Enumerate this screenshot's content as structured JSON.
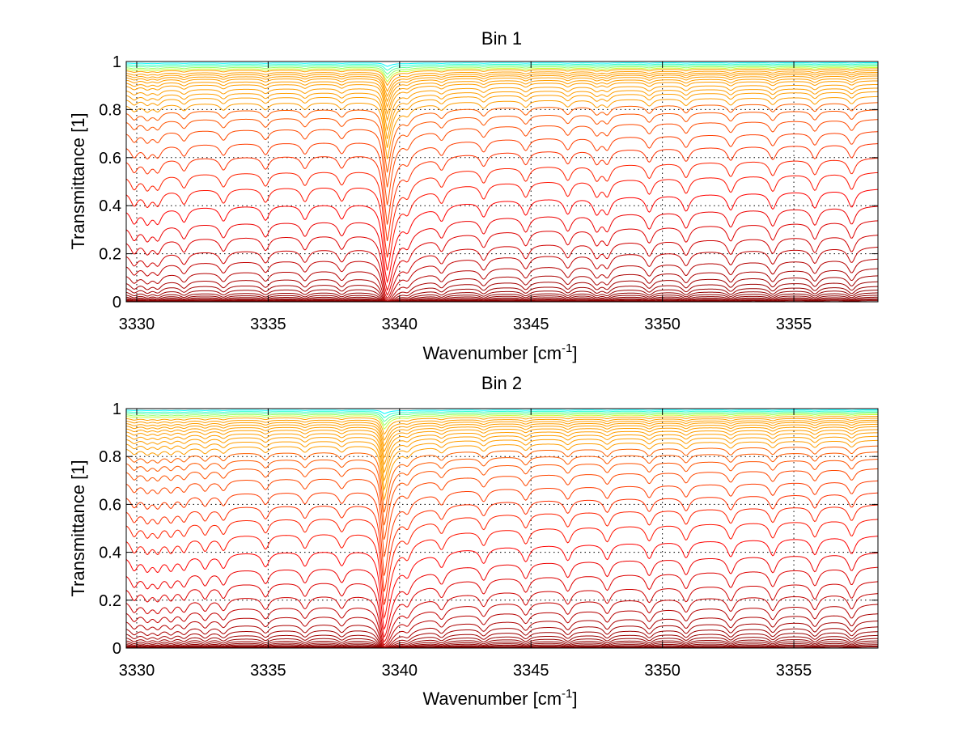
{
  "chart_data": [
    {
      "type": "line",
      "title": "Bin 1",
      "xlabel": "Wavenumber [cm",
      "xlabel_sup": "-1",
      "xlabel_end": "]",
      "ylabel": "Transmittance [1]",
      "xlim": [
        3329.6,
        3358.2
      ],
      "ylim": [
        0,
        1
      ],
      "x_ticks": [
        3330,
        3335,
        3340,
        3345,
        3350,
        3355
      ],
      "y_ticks": [
        0,
        0.2,
        0.4,
        0.6,
        0.8,
        1
      ],
      "x_tick_labels": [
        "3330",
        "3335",
        "3340",
        "3345",
        "3350",
        "3355"
      ],
      "y_tick_labels": [
        "0",
        "0.2",
        "0.4",
        "0.6",
        "0.8",
        "1"
      ],
      "grid": true,
      "colormap": "jet (low transmittance dark red → high transmittance orange/yellow/green/blue)",
      "strong_line": {
        "center": 3339.5,
        "min_transmittance_at_level_0.55": 0.18
      },
      "absorption_lines": [
        3329.9,
        3330.4,
        3330.8,
        3331.8,
        3333.3,
        3334.9,
        3336.4,
        3337.8,
        3339.5,
        3340.3,
        3341.6,
        3343.2,
        3344.8,
        3346.4,
        3347.5,
        3347.9,
        3349.5,
        3350.9,
        3352.6,
        3354.2,
        3355.8,
        3357.2
      ],
      "series_baselines": [
        0.995,
        0.99,
        0.985,
        0.98,
        0.975,
        0.97,
        0.962,
        0.955,
        0.948,
        0.94,
        0.93,
        0.92,
        0.905,
        0.89,
        0.875,
        0.855,
        0.83,
        0.8,
        0.76,
        0.71,
        0.66,
        0.6,
        0.54,
        0.47,
        0.4,
        0.34,
        0.28,
        0.23,
        0.18,
        0.14,
        0.11,
        0.085,
        0.065,
        0.05,
        0.038,
        0.028,
        0.02,
        0.014,
        0.009,
        0.005
      ]
    },
    {
      "type": "line",
      "title": "Bin 2",
      "xlabel": "Wavenumber [cm",
      "xlabel_sup": "-1",
      "xlabel_end": "]",
      "ylabel": "Transmittance [1]",
      "xlim": [
        3329.6,
        3358.2
      ],
      "ylim": [
        0,
        1
      ],
      "x_ticks": [
        3330,
        3335,
        3340,
        3345,
        3350,
        3355
      ],
      "y_ticks": [
        0,
        0.2,
        0.4,
        0.6,
        0.8,
        1
      ],
      "x_tick_labels": [
        "3330",
        "3335",
        "3340",
        "3345",
        "3350",
        "3355"
      ],
      "y_tick_labels": [
        "0",
        "0.2",
        "0.4",
        "0.6",
        "0.8",
        "1"
      ],
      "grid": true,
      "colormap": "jet (low transmittance dark red → high transmittance orange/yellow/green/blue)",
      "strong_line": {
        "center": 3339.4,
        "min_transmittance_at_level_0.55": 0.19
      },
      "absorption_lines": [
        3329.9,
        3330.4,
        3330.8,
        3331.3,
        3331.8,
        3332.6,
        3333.3,
        3334.9,
        3336.4,
        3337.8,
        3339.4,
        3340.3,
        3341.6,
        3343.2,
        3344.8,
        3346.4,
        3347.9,
        3349.5,
        3350.9,
        3352.6,
        3354.2,
        3355.8,
        3357.2
      ],
      "series_baselines": [
        0.995,
        0.99,
        0.985,
        0.98,
        0.975,
        0.968,
        0.96,
        0.952,
        0.944,
        0.935,
        0.925,
        0.913,
        0.9,
        0.885,
        0.868,
        0.845,
        0.82,
        0.79,
        0.75,
        0.7,
        0.65,
        0.6,
        0.54,
        0.47,
        0.4,
        0.34,
        0.28,
        0.23,
        0.185,
        0.145,
        0.115,
        0.09,
        0.07,
        0.054,
        0.041,
        0.031,
        0.022,
        0.015,
        0.009,
        0.005
      ]
    }
  ]
}
